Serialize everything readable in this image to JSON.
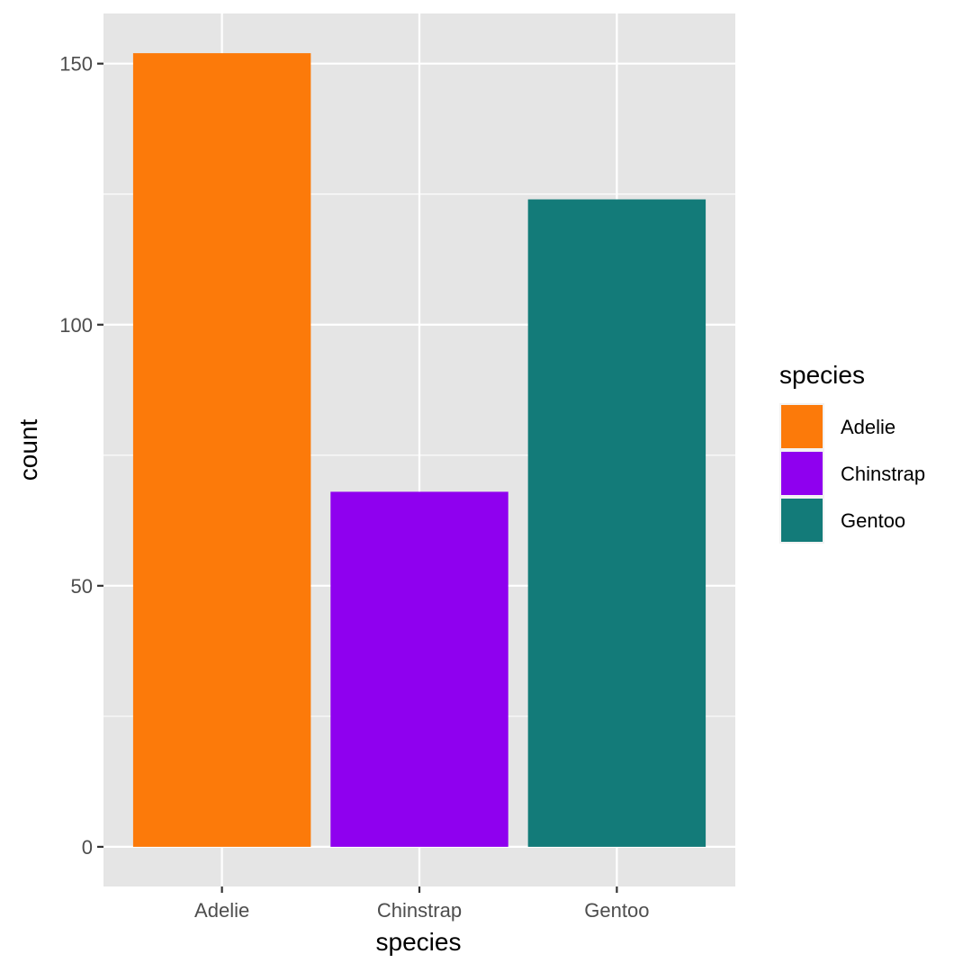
{
  "chart_data": {
    "type": "bar",
    "categories": [
      "Adelie",
      "Chinstrap",
      "Gentoo"
    ],
    "values": [
      152,
      68,
      124
    ],
    "colors": [
      "#fc7a0a",
      "#8f00ef",
      "#137b79"
    ],
    "title": "",
    "xlabel": "species",
    "ylabel": "count",
    "ylim": [
      -7.6,
      159.6
    ],
    "yticks": [
      0,
      50,
      100,
      150
    ],
    "ytick_labels": [
      "0",
      "50",
      "100",
      "150"
    ],
    "grid": true,
    "panel_background": "#e5e5e5",
    "grid_color": "#ffffff",
    "legend": {
      "title": "species",
      "position": "right",
      "items": [
        {
          "label": "Adelie",
          "color": "#fc7a0a"
        },
        {
          "label": "Chinstrap",
          "color": "#8f00ef"
        },
        {
          "label": "Gentoo",
          "color": "#137b79"
        }
      ]
    }
  }
}
